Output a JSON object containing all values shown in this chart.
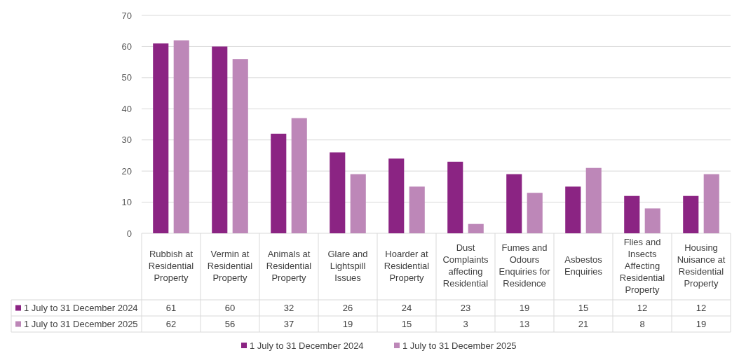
{
  "chart_data": {
    "type": "bar",
    "categories": [
      "Rubbish at Residential Property",
      "Vermin at Residential Property",
      "Animals at Residential Property",
      "Glare and Lightspill Issues",
      "Hoarder at Residential Property",
      "Dust Complaints affecting Residential",
      "Fumes and Odours Enquiries for Residence",
      "Asbestos Enquiries",
      "Flies and Insects Affecting Residential Property",
      "Housing Nuisance at Residential Property"
    ],
    "series": [
      {
        "name": "1 July to 31 December 2024",
        "color": "#8b2483",
        "values": [
          61,
          60,
          32,
          26,
          24,
          23,
          19,
          15,
          12,
          12
        ]
      },
      {
        "name": "1 July to 31 December 2025",
        "color": "#bd87b8",
        "values": [
          62,
          56,
          37,
          19,
          15,
          3,
          13,
          21,
          8,
          19
        ]
      }
    ],
    "ylim": [
      0,
      70
    ],
    "yticks": [
      0,
      10,
      20,
      30,
      40,
      50,
      60,
      70
    ],
    "grid": "y",
    "data_labels": true,
    "legend": "bottom"
  }
}
